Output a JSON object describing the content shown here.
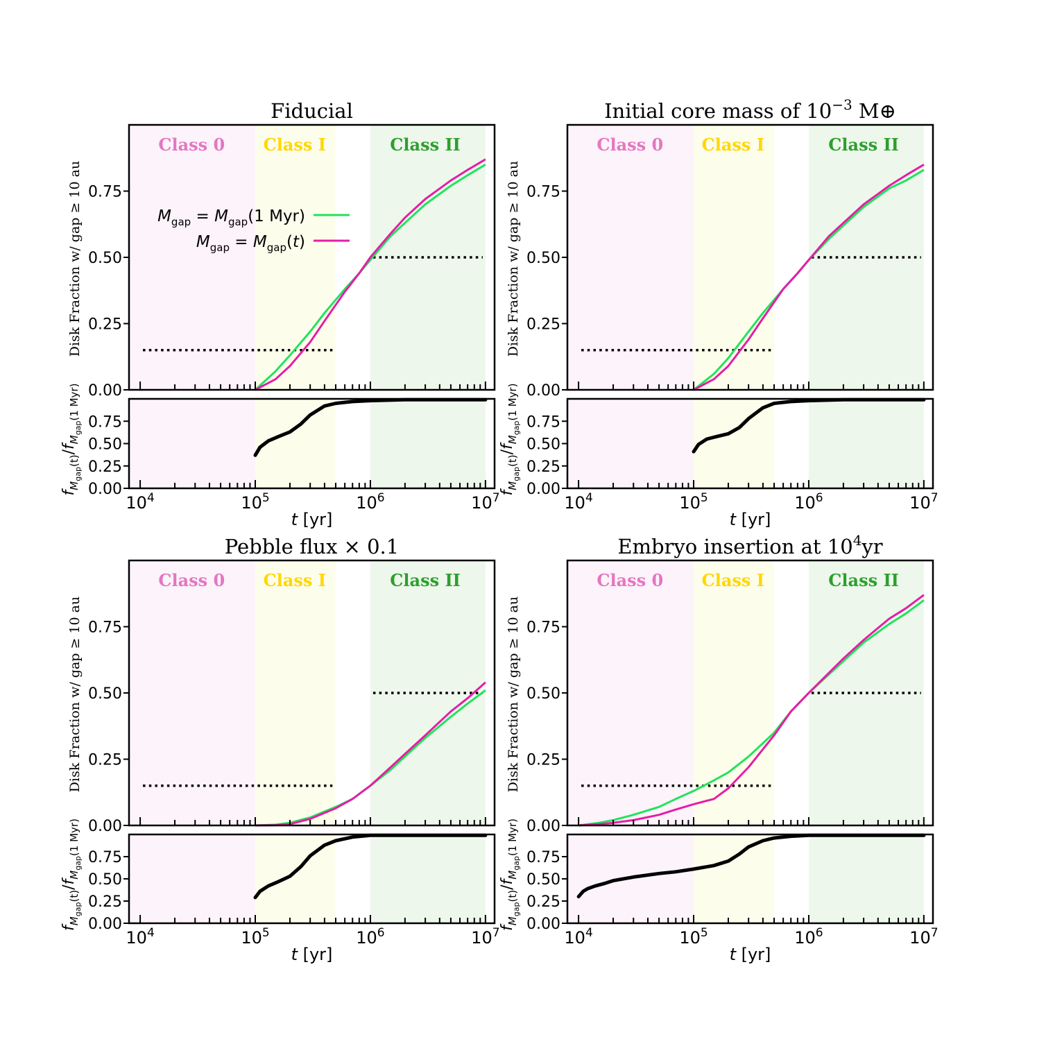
{
  "colors": {
    "class0_bg": "#fdf3fa",
    "class1_bg": "#fdfdec",
    "class2_bg": "#eef7ec",
    "class0_text": "#e377c2",
    "class1_text": "#ffd700",
    "class2_text": "#2ca02c",
    "green_line": "#22e35c",
    "magenta_line": "#e41ea6",
    "ratio_line": "#000000",
    "dotted_line": "#000000"
  },
  "labels": {
    "class0": "Class 0",
    "class1": "Class I",
    "class2": "Class II",
    "ylabel_top": "Disk Fraction w/ gap ≥ 10 au",
    "ylabel_bottom": "f M_gap(t) / f M_gap(1 Myr)",
    "xlabel": "t [yr]",
    "legend_green": "M_gap = M_gap(1 Myr)",
    "legend_magenta": "M_gap = M_gap(t)"
  },
  "chart_data": [
    {
      "type": "line",
      "title": "Fiducial",
      "xscale": "log",
      "xlim": [
        8000,
        12000000
      ],
      "ylim_top": [
        0,
        1.0
      ],
      "ylim_bottom": [
        0,
        1.0
      ],
      "yticks": [
        "0.00",
        "0.25",
        "0.50",
        "0.75"
      ],
      "xticks": [
        "10^4",
        "10^5",
        "10^6",
        "10^7"
      ],
      "class_regions": [
        [
          8000,
          100000
        ],
        [
          100000,
          500000
        ],
        [
          1000000,
          10000000
        ]
      ],
      "dotted_refs": [
        {
          "x": [
            10000,
            500000
          ],
          "y": 0.15
        },
        {
          "x": [
            1000000,
            10000000
          ],
          "y": 0.5
        }
      ],
      "legend": "inside top-left",
      "series": [
        {
          "name": "M_gap = M_gap(1 Myr)",
          "color": "green",
          "x": [
            100000,
            150000,
            200000,
            300000,
            400000,
            600000,
            800000,
            1000000,
            1500000,
            2000000,
            3000000,
            5000000,
            7000000,
            10000000
          ],
          "y": [
            0.0,
            0.07,
            0.13,
            0.22,
            0.29,
            0.38,
            0.44,
            0.49,
            0.58,
            0.63,
            0.7,
            0.77,
            0.81,
            0.85
          ]
        },
        {
          "name": "M_gap = M_gap(t)",
          "color": "magenta",
          "x": [
            100000,
            150000,
            200000,
            300000,
            400000,
            600000,
            800000,
            1000000,
            1500000,
            2000000,
            3000000,
            5000000,
            7000000,
            10000000
          ],
          "y": [
            0.0,
            0.04,
            0.09,
            0.18,
            0.26,
            0.37,
            0.44,
            0.5,
            0.59,
            0.65,
            0.72,
            0.79,
            0.83,
            0.87
          ]
        }
      ],
      "ratio_series": {
        "x": [
          100000,
          110000,
          130000,
          160000,
          200000,
          250000,
          300000,
          400000,
          500000,
          700000,
          1000000,
          2000000,
          10000000
        ],
        "y": [
          0.37,
          0.46,
          0.53,
          0.58,
          0.63,
          0.72,
          0.82,
          0.92,
          0.95,
          0.97,
          0.98,
          0.99,
          0.99
        ]
      }
    },
    {
      "type": "line",
      "title": "Initial core mass of 10^-3 M⊕",
      "xscale": "log",
      "xlim": [
        8000,
        12000000
      ],
      "ylim_top": [
        0,
        1.0
      ],
      "ylim_bottom": [
        0,
        1.0
      ],
      "yticks": [
        "0.00",
        "0.25",
        "0.50",
        "0.75"
      ],
      "xticks": [
        "10^4",
        "10^5",
        "10^6",
        "10^7"
      ],
      "class_regions": [
        [
          8000,
          100000
        ],
        [
          100000,
          500000
        ],
        [
          1000000,
          10000000
        ]
      ],
      "dotted_refs": [
        {
          "x": [
            10000,
            500000
          ],
          "y": 0.15
        },
        {
          "x": [
            1000000,
            10000000
          ],
          "y": 0.5
        }
      ],
      "series": [
        {
          "name": "M_gap = M_gap(1 Myr)",
          "color": "green",
          "x": [
            100000,
            150000,
            200000,
            300000,
            400000,
            600000,
            800000,
            1000000,
            1500000,
            2000000,
            3000000,
            5000000,
            7000000,
            10000000
          ],
          "y": [
            0.0,
            0.06,
            0.12,
            0.22,
            0.29,
            0.38,
            0.44,
            0.49,
            0.57,
            0.62,
            0.69,
            0.76,
            0.79,
            0.83
          ]
        },
        {
          "name": "M_gap = M_gap(t)",
          "color": "magenta",
          "x": [
            100000,
            150000,
            200000,
            300000,
            400000,
            600000,
            800000,
            1000000,
            1500000,
            2000000,
            3000000,
            5000000,
            7000000,
            10000000
          ],
          "y": [
            0.0,
            0.04,
            0.09,
            0.19,
            0.27,
            0.38,
            0.44,
            0.49,
            0.58,
            0.63,
            0.7,
            0.77,
            0.81,
            0.85
          ]
        }
      ],
      "ratio_series": {
        "x": [
          100000,
          110000,
          130000,
          160000,
          200000,
          250000,
          300000,
          400000,
          500000,
          700000,
          1000000,
          2000000,
          10000000
        ],
        "y": [
          0.41,
          0.49,
          0.55,
          0.58,
          0.61,
          0.68,
          0.78,
          0.9,
          0.95,
          0.97,
          0.98,
          0.99,
          0.99
        ]
      }
    },
    {
      "type": "line",
      "title": "Pebble flux × 0.1",
      "xscale": "log",
      "xlim": [
        8000,
        12000000
      ],
      "ylim_top": [
        0,
        1.0
      ],
      "ylim_bottom": [
        0,
        1.0
      ],
      "yticks": [
        "0.00",
        "0.25",
        "0.50",
        "0.75"
      ],
      "xticks": [
        "10^4",
        "10^5",
        "10^6",
        "10^7"
      ],
      "class_regions": [
        [
          8000,
          100000
        ],
        [
          100000,
          500000
        ],
        [
          1000000,
          10000000
        ]
      ],
      "dotted_refs": [
        {
          "x": [
            10000,
            500000
          ],
          "y": 0.15
        },
        {
          "x": [
            1000000,
            10000000
          ],
          "y": 0.5
        }
      ],
      "series": [
        {
          "name": "M_gap = M_gap(1 Myr)",
          "color": "green",
          "x": [
            100000,
            150000,
            200000,
            300000,
            500000,
            700000,
            1000000,
            1500000,
            2000000,
            3000000,
            5000000,
            7000000,
            10000000
          ],
          "y": [
            0.0,
            0.003,
            0.01,
            0.03,
            0.07,
            0.1,
            0.15,
            0.21,
            0.26,
            0.33,
            0.41,
            0.46,
            0.51
          ]
        },
        {
          "name": "M_gap = M_gap(t)",
          "color": "magenta",
          "x": [
            100000,
            150000,
            200000,
            300000,
            500000,
            700000,
            1000000,
            1500000,
            2000000,
            3000000,
            5000000,
            7000000,
            10000000
          ],
          "y": [
            0.0,
            0.001,
            0.005,
            0.025,
            0.065,
            0.1,
            0.15,
            0.22,
            0.27,
            0.34,
            0.43,
            0.48,
            0.54
          ]
        }
      ],
      "ratio_series": {
        "x": [
          100000,
          110000,
          130000,
          160000,
          200000,
          250000,
          300000,
          400000,
          500000,
          700000,
          1000000,
          2000000,
          10000000
        ],
        "y": [
          0.29,
          0.36,
          0.42,
          0.47,
          0.53,
          0.64,
          0.76,
          0.88,
          0.93,
          0.97,
          0.99,
          0.99,
          0.99
        ]
      }
    },
    {
      "type": "line",
      "title": "Embryo insertion at 10^4 yr",
      "xscale": "log",
      "xlim": [
        8000,
        12000000
      ],
      "ylim_top": [
        0,
        1.0
      ],
      "ylim_bottom": [
        0,
        1.0
      ],
      "yticks": [
        "0.00",
        "0.25",
        "0.50",
        "0.75"
      ],
      "xticks": [
        "10^4",
        "10^5",
        "10^6",
        "10^7"
      ],
      "class_regions": [
        [
          8000,
          100000
        ],
        [
          100000,
          500000
        ],
        [
          1000000,
          10000000
        ]
      ],
      "dotted_refs": [
        {
          "x": [
            10000,
            500000
          ],
          "y": 0.15
        },
        {
          "x": [
            1000000,
            10000000
          ],
          "y": 0.5
        }
      ],
      "series": [
        {
          "name": "M_gap = M_gap(1 Myr)",
          "color": "green",
          "x": [
            10000,
            15000,
            20000,
            30000,
            50000,
            70000,
            100000,
            150000,
            200000,
            300000,
            500000,
            700000,
            1000000,
            2000000,
            3000000,
            5000000,
            7000000,
            10000000
          ],
          "y": [
            0.0,
            0.01,
            0.02,
            0.04,
            0.07,
            0.1,
            0.13,
            0.17,
            0.2,
            0.26,
            0.35,
            0.43,
            0.5,
            0.62,
            0.69,
            0.76,
            0.8,
            0.85
          ]
        },
        {
          "name": "M_gap = M_gap(t)",
          "color": "magenta",
          "x": [
            10000,
            15000,
            20000,
            30000,
            50000,
            70000,
            100000,
            150000,
            200000,
            300000,
            500000,
            700000,
            1000000,
            2000000,
            3000000,
            5000000,
            7000000,
            10000000
          ],
          "y": [
            0.0,
            0.005,
            0.01,
            0.02,
            0.04,
            0.06,
            0.08,
            0.1,
            0.14,
            0.22,
            0.34,
            0.43,
            0.5,
            0.63,
            0.7,
            0.78,
            0.82,
            0.87
          ]
        }
      ],
      "ratio_series": {
        "x": [
          10000,
          11000,
          12000,
          14000,
          17000,
          20000,
          30000,
          50000,
          70000,
          100000,
          150000,
          200000,
          250000,
          300000,
          400000,
          500000,
          700000,
          1000000,
          2000000,
          10000000
        ],
        "y": [
          0.3,
          0.36,
          0.39,
          0.42,
          0.45,
          0.48,
          0.52,
          0.56,
          0.58,
          0.61,
          0.65,
          0.7,
          0.78,
          0.86,
          0.93,
          0.96,
          0.98,
          0.99,
          0.99,
          0.99
        ]
      }
    }
  ]
}
